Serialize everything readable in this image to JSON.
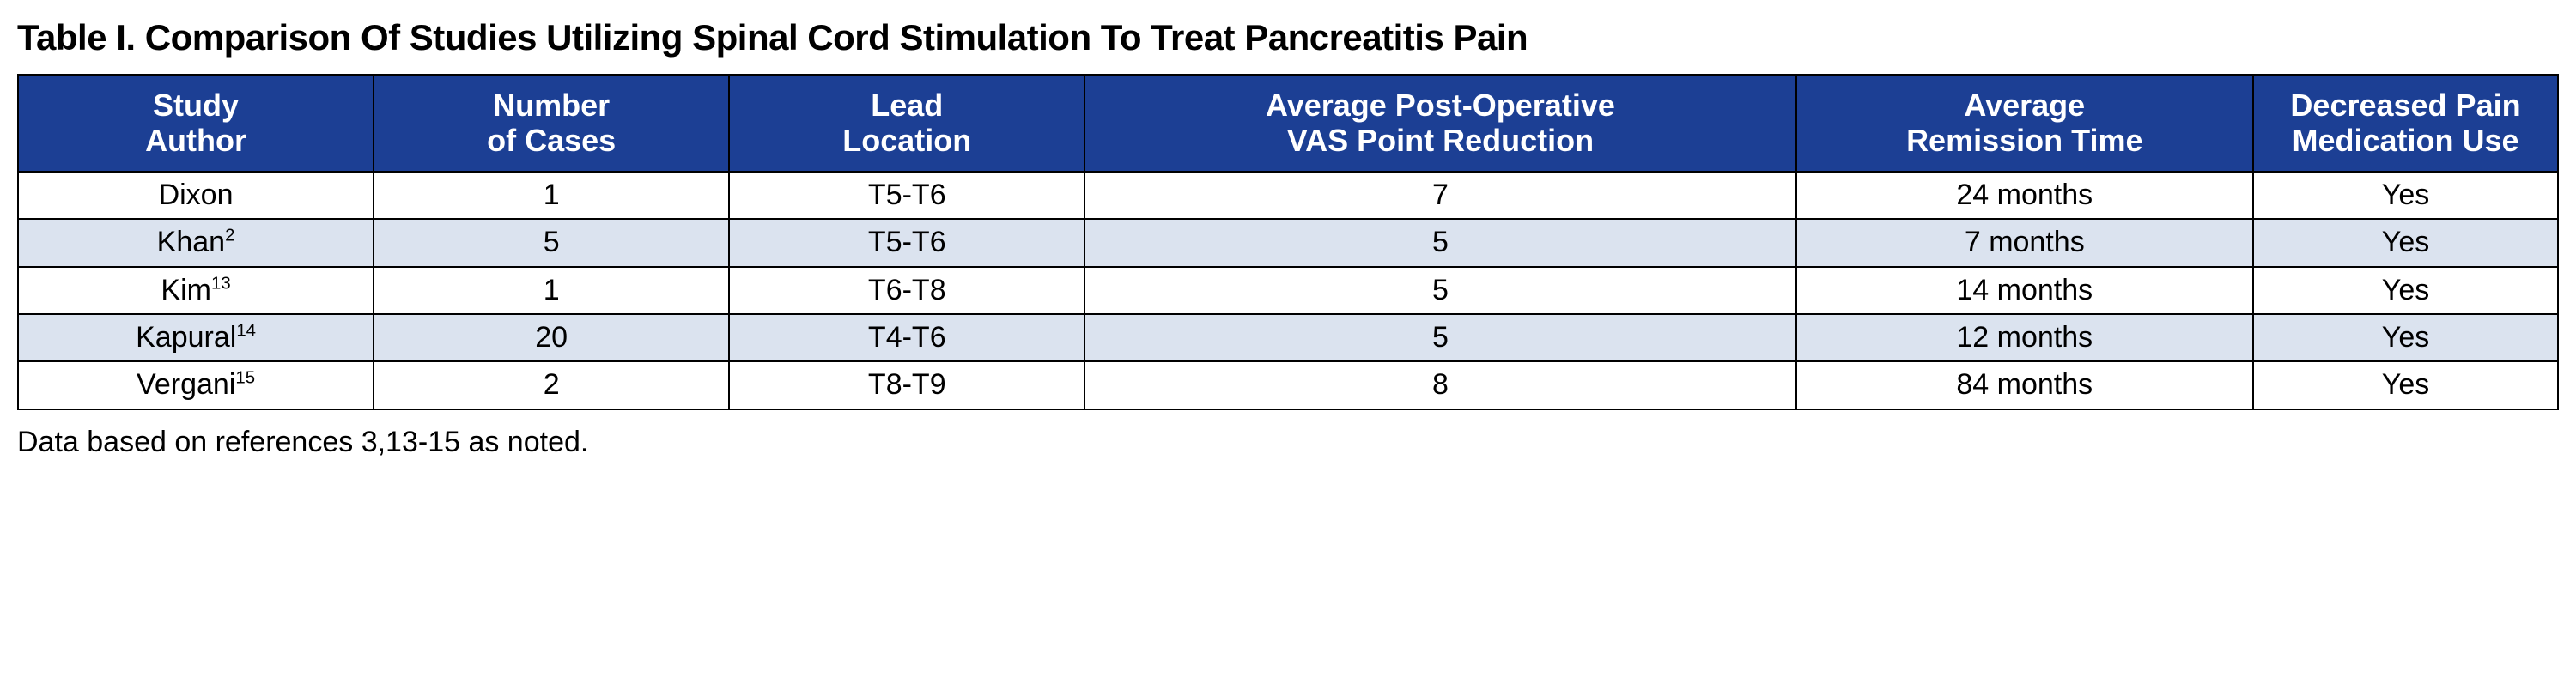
{
  "table": {
    "title": "Table I. Comparison Of Studies Utilizing Spinal Cord Stimulation To Treat Pancreatitis Pain",
    "header_bg": "#1c3f94",
    "header_fg": "#ffffff",
    "row_alt_bg": "#dbe3ef",
    "row_bg": "#ffffff",
    "col_widths": [
      "14%",
      "14%",
      "14%",
      "28%",
      "18%",
      "12%"
    ],
    "columns": [
      {
        "line1": "Study",
        "line2": "Author"
      },
      {
        "line1": "Number",
        "line2": "of Cases"
      },
      {
        "line1": "Lead",
        "line2": "Location"
      },
      {
        "line1": "Average Post-Operative",
        "line2": "VAS Point Reduction"
      },
      {
        "line1": "Average",
        "line2": "Remission Time"
      },
      {
        "line1": "Decreased Pain",
        "line2": "Medication Use"
      }
    ],
    "rows": [
      {
        "author": "Dixon",
        "sup": "",
        "cases": "1",
        "lead": "T5-T6",
        "vas": "7",
        "remission": "24 months",
        "med": "Yes",
        "alt": false
      },
      {
        "author": "Khan",
        "sup": "2",
        "cases": "5",
        "lead": "T5-T6",
        "vas": "5",
        "remission": "7 months",
        "med": "Yes",
        "alt": true
      },
      {
        "author": "Kim",
        "sup": "13",
        "cases": "1",
        "lead": "T6-T8",
        "vas": "5",
        "remission": "14 months",
        "med": "Yes",
        "alt": false
      },
      {
        "author": "Kapural",
        "sup": "14",
        "cases": "20",
        "lead": "T4-T6",
        "vas": "5",
        "remission": "12 months",
        "med": "Yes",
        "alt": true
      },
      {
        "author": "Vergani",
        "sup": "15",
        "cases": "2",
        "lead": "T8-T9",
        "vas": "8",
        "remission": "84 months",
        "med": "Yes",
        "alt": false
      }
    ],
    "footnote": "Data based on references 3,13-15 as noted."
  }
}
